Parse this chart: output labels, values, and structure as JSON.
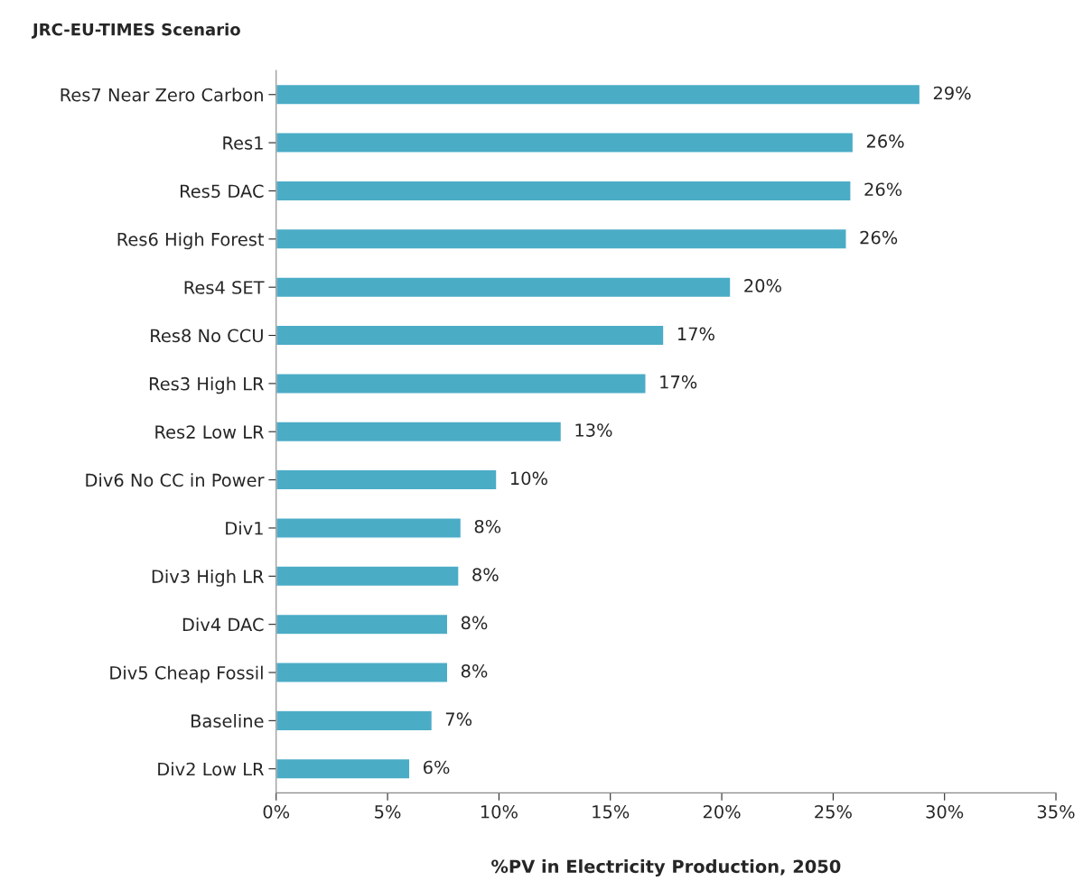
{
  "chart_data": {
    "type": "bar",
    "orientation": "horizontal",
    "title": "JRC-EU-TIMES Scenario",
    "xlabel": "%PV in Electricity Production, 2050",
    "categories": [
      "Res7 Near Zero Carbon",
      "Res1",
      "Res5 DAC",
      "Res6 High Forest",
      "Res4 SET",
      "Res8 No CCU",
      "Res3 High LR",
      "Res2 Low LR",
      "Div6 No CC in Power",
      "Div1",
      "Div3 High LR",
      "Div4 DAC",
      "Div5 Cheap Fossil",
      "Baseline",
      "Div2 Low LR"
    ],
    "values": [
      28.9,
      25.9,
      25.8,
      25.6,
      20.4,
      17.4,
      16.6,
      12.8,
      9.9,
      8.3,
      8.2,
      7.7,
      7.7,
      7.0,
      6.0
    ],
    "value_labels": [
      "29%",
      "26%",
      "26%",
      "26%",
      "20%",
      "17%",
      "17%",
      "13%",
      "10%",
      "8%",
      "8%",
      "8%",
      "8%",
      "7%",
      "6%"
    ],
    "color": "#4bacc6",
    "xlim": [
      0,
      35
    ],
    "xticks": [
      {
        "value": 0,
        "label": "0%"
      },
      {
        "value": 5,
        "label": "5%"
      },
      {
        "value": 10,
        "label": "10%"
      },
      {
        "value": 15,
        "label": "15%"
      },
      {
        "value": 20,
        "label": "20%"
      },
      {
        "value": 25,
        "label": "25%"
      },
      {
        "value": 30,
        "label": "30%"
      },
      {
        "value": 35,
        "label": "35%"
      }
    ],
    "grid": false,
    "legend": false
  }
}
